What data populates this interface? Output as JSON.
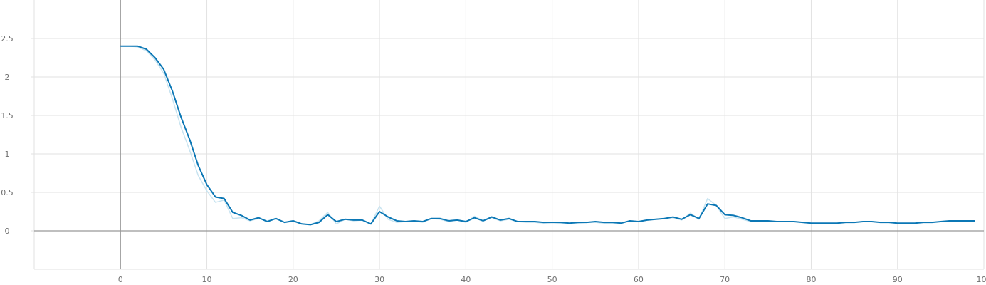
{
  "chart_data": {
    "type": "line",
    "title": "",
    "xlabel": "",
    "ylabel": "",
    "xlim": [
      -10,
      100
    ],
    "ylim": [
      -0.5,
      3.0
    ],
    "x_ticks": [
      0,
      10,
      20,
      30,
      40,
      50,
      60,
      70,
      80,
      90,
      100
    ],
    "y_ticks": [
      0,
      0.5,
      1,
      1.5,
      2,
      2.5
    ],
    "x_tick_labels": [
      "0",
      "10",
      "20",
      "30",
      "40",
      "50",
      "60",
      "70",
      "80",
      "90",
      "100"
    ],
    "y_tick_labels": [
      "0",
      "0.5",
      "1",
      "1.5",
      "2",
      "2.5"
    ],
    "grid": true,
    "colors": {
      "smoothed": "#0b77b5",
      "raw": "#c7e3f0",
      "grid": "#e2e2e2",
      "axis": "#999999"
    },
    "series": [
      {
        "role": "raw",
        "x": [
          0,
          1,
          2,
          3,
          4,
          5,
          6,
          7,
          8,
          9,
          10,
          11,
          12,
          13,
          14,
          15,
          16,
          17,
          18,
          19,
          20,
          21,
          22,
          23,
          24,
          25,
          26,
          27,
          28,
          29,
          30,
          31,
          32,
          33,
          34,
          35,
          36,
          37,
          38,
          39,
          40,
          41,
          42,
          43,
          44,
          45,
          46,
          47,
          48,
          49,
          50,
          51,
          52,
          53,
          54,
          55,
          56,
          57,
          58,
          59,
          60,
          61,
          62,
          63,
          64,
          65,
          66,
          67,
          68,
          69,
          70,
          71,
          72,
          73,
          74,
          75,
          76,
          77,
          78,
          79,
          80,
          81,
          82,
          83,
          84,
          85,
          86,
          87,
          88,
          89,
          90,
          91,
          92,
          93,
          94,
          95,
          96,
          97,
          98,
          99
        ],
        "values": [
          2.4,
          2.4,
          2.39,
          2.34,
          2.22,
          2.05,
          1.72,
          1.35,
          1.05,
          0.72,
          0.52,
          0.37,
          0.4,
          0.16,
          0.17,
          0.13,
          0.16,
          0.13,
          0.16,
          0.11,
          0.12,
          0.09,
          0.08,
          0.13,
          0.24,
          0.09,
          0.15,
          0.13,
          0.14,
          0.09,
          0.32,
          0.15,
          0.11,
          0.12,
          0.13,
          0.11,
          0.16,
          0.15,
          0.12,
          0.14,
          0.11,
          0.19,
          0.13,
          0.17,
          0.13,
          0.15,
          0.12,
          0.11,
          0.11,
          0.1,
          0.11,
          0.1,
          0.1,
          0.1,
          0.11,
          0.11,
          0.1,
          0.1,
          0.1,
          0.13,
          0.12,
          0.14,
          0.15,
          0.16,
          0.17,
          0.14,
          0.23,
          0.15,
          0.42,
          0.33,
          0.16,
          0.18,
          0.15,
          0.12,
          0.12,
          0.13,
          0.12,
          0.12,
          0.12,
          0.11,
          0.1,
          0.1,
          0.1,
          0.1,
          0.11,
          0.11,
          0.12,
          0.12,
          0.11,
          0.11,
          0.1,
          0.1,
          0.1,
          0.11,
          0.11,
          0.12,
          0.13,
          0.13,
          0.13,
          0.13
        ]
      },
      {
        "role": "smoothed",
        "x": [
          0,
          1,
          2,
          3,
          4,
          5,
          6,
          7,
          8,
          9,
          10,
          11,
          12,
          13,
          14,
          15,
          16,
          17,
          18,
          19,
          20,
          21,
          22,
          23,
          24,
          25,
          26,
          27,
          28,
          29,
          30,
          31,
          32,
          33,
          34,
          35,
          36,
          37,
          38,
          39,
          40,
          41,
          42,
          43,
          44,
          45,
          46,
          47,
          48,
          49,
          50,
          51,
          52,
          53,
          54,
          55,
          56,
          57,
          58,
          59,
          60,
          61,
          62,
          63,
          64,
          65,
          66,
          67,
          68,
          69,
          70,
          71,
          72,
          73,
          74,
          75,
          76,
          77,
          78,
          79,
          80,
          81,
          82,
          83,
          84,
          85,
          86,
          87,
          88,
          89,
          90,
          91,
          92,
          93,
          94,
          95,
          96,
          97,
          98,
          99
        ],
        "values": [
          2.4,
          2.4,
          2.4,
          2.36,
          2.25,
          2.1,
          1.82,
          1.48,
          1.19,
          0.85,
          0.6,
          0.44,
          0.42,
          0.24,
          0.2,
          0.14,
          0.17,
          0.12,
          0.16,
          0.11,
          0.13,
          0.09,
          0.08,
          0.11,
          0.21,
          0.12,
          0.15,
          0.14,
          0.14,
          0.09,
          0.25,
          0.18,
          0.13,
          0.12,
          0.13,
          0.12,
          0.16,
          0.16,
          0.13,
          0.14,
          0.12,
          0.17,
          0.13,
          0.18,
          0.14,
          0.16,
          0.12,
          0.12,
          0.12,
          0.11,
          0.11,
          0.11,
          0.1,
          0.11,
          0.11,
          0.12,
          0.11,
          0.11,
          0.1,
          0.13,
          0.12,
          0.14,
          0.15,
          0.16,
          0.18,
          0.15,
          0.21,
          0.16,
          0.35,
          0.33,
          0.21,
          0.2,
          0.17,
          0.13,
          0.13,
          0.13,
          0.12,
          0.12,
          0.12,
          0.11,
          0.1,
          0.1,
          0.1,
          0.1,
          0.11,
          0.11,
          0.12,
          0.12,
          0.11,
          0.11,
          0.1,
          0.1,
          0.1,
          0.11,
          0.11,
          0.12,
          0.13,
          0.13,
          0.13,
          0.13
        ]
      }
    ]
  }
}
